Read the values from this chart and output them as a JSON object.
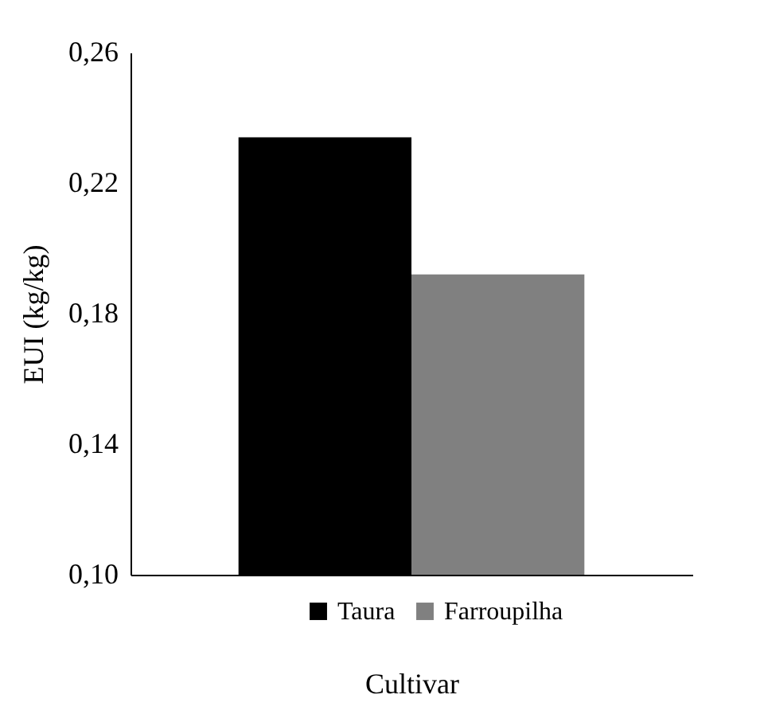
{
  "chart_data": {
    "type": "bar",
    "xlabel": "Cultivar",
    "ylabel": "EUI (kg/kg)",
    "categories": [
      null
    ],
    "series": [
      {
        "name": "Taura",
        "color": "#000000",
        "values": [
          0.234
        ]
      },
      {
        "name": "Farroupilha",
        "color": "#808080",
        "values": [
          0.192
        ]
      }
    ],
    "ylim": [
      0.1,
      0.26
    ],
    "yticks": [
      {
        "value": 0.1,
        "label": "0,10"
      },
      {
        "value": 0.14,
        "label": "0,14"
      },
      {
        "value": 0.18,
        "label": "0,18"
      },
      {
        "value": 0.22,
        "label": "0,22"
      },
      {
        "value": 0.26,
        "label": "0,26"
      }
    ],
    "grid": false,
    "legend": "bottom"
  }
}
